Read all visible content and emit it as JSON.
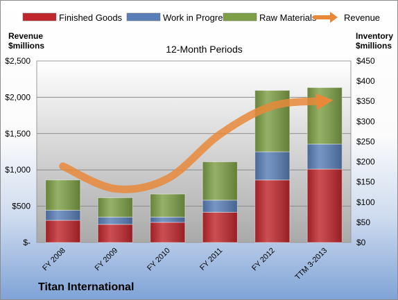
{
  "chart_data": {
    "type": "bar",
    "stacked": true,
    "title": "12-Month Periods",
    "categories": [
      "FY 2008",
      "FY 2009",
      "FY 2010",
      "FY 2011",
      "FY 2012",
      "TTM 3-2013"
    ],
    "series": [
      {
        "name": "Finished Goods",
        "axis": "right",
        "color": "#c0272d",
        "values": [
          55,
          45,
          50,
          75,
          155,
          182
        ]
      },
      {
        "name": "Work in Progress",
        "axis": "right",
        "color": "#5a7fb8",
        "values": [
          25,
          18,
          13,
          30,
          70,
          62
        ]
      },
      {
        "name": "Raw Materials",
        "axis": "right",
        "color": "#7da046",
        "values": [
          75,
          48,
          57,
          95,
          152,
          140
        ]
      },
      {
        "name": "Revenue",
        "axis": "left",
        "type": "line",
        "color": "#e8893a",
        "values": [
          1050,
          740,
          880,
          1490,
          1880,
          1950
        ]
      }
    ],
    "left_axis": {
      "label": "Revenue\n$millions",
      "ticks": [
        "$2,500",
        "$2,000",
        "$1,500",
        "$1,000",
        "$500",
        "$-"
      ],
      "ylim": [
        0,
        2500
      ]
    },
    "right_axis": {
      "label": "Inventory\n$millions",
      "ticks": [
        "$450",
        "$400",
        "$350",
        "$300",
        "$250",
        "$200",
        "$150",
        "$100",
        "$50",
        "$0"
      ],
      "ylim": [
        0,
        450
      ]
    },
    "grid": true,
    "legend_position": "top"
  },
  "company": "Titan International"
}
